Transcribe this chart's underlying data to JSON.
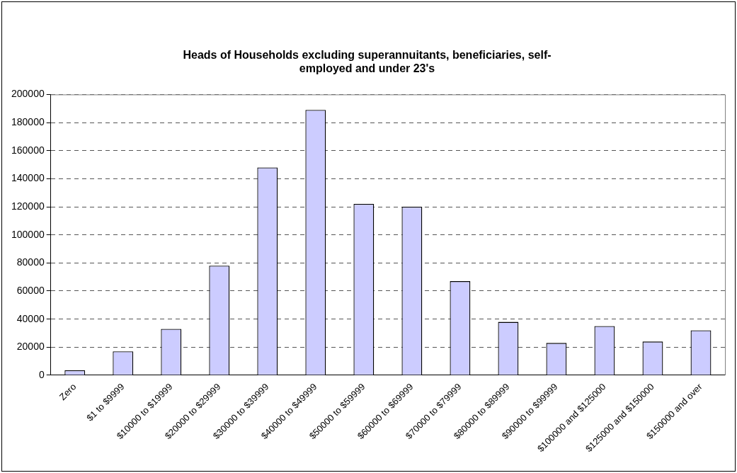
{
  "chart_data": {
    "type": "bar",
    "title": [
      "Heads of Households excluding superannuitants, beneficiaries, self-",
      "employed and under 23's"
    ],
    "categories": [
      "Zero",
      "$1 to $9999",
      "$10000 to $19999",
      "$20000 to $29999",
      "$30000 to $39999",
      "$40000 to $49999",
      "$50000 to $59999",
      "$60000 to $69999",
      "$70000 to $79999",
      "$80000 to $89999",
      "$90000 to $99999",
      "$100000 and $125000",
      "$125000 and $150000",
      "$150000 and over"
    ],
    "values": [
      3500,
      17000,
      33000,
      78000,
      148000,
      189000,
      122000,
      120000,
      67000,
      38000,
      23000,
      35000,
      24000,
      32000
    ],
    "color": "#ccccff",
    "ylim": [
      0,
      200000
    ],
    "yticks": [
      0,
      20000,
      40000,
      60000,
      80000,
      100000,
      120000,
      140000,
      160000,
      180000,
      200000
    ],
    "grid": "y",
    "line_style": "dashed",
    "legend": false
  }
}
